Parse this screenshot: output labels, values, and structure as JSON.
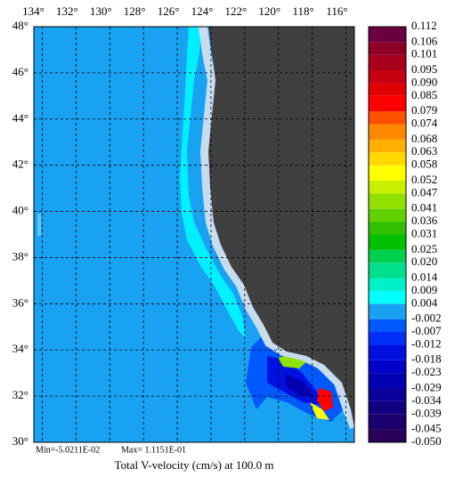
{
  "chart_data": {
    "type": "contour-map",
    "title": "Total V-velocity (cm/s) at 100.0 m",
    "min_label": "Min=-5.0211E-02",
    "max_label": "Max= 1.1151E-01",
    "xlim": [
      134.5,
      115.5
    ],
    "xticks": [
      {
        "value": 134,
        "label": "134°"
      },
      {
        "value": 132,
        "label": "132°"
      },
      {
        "value": 130,
        "label": "130°"
      },
      {
        "value": 128,
        "label": "128°"
      },
      {
        "value": 126,
        "label": "126°"
      },
      {
        "value": 124,
        "label": "124°"
      },
      {
        "value": 122,
        "label": "122°"
      },
      {
        "value": 120,
        "label": "120°"
      },
      {
        "value": 118,
        "label": "118°"
      },
      {
        "value": 116,
        "label": "116°"
      }
    ],
    "ylim": [
      30,
      48
    ],
    "yticks": [
      {
        "value": 30,
        "label": "30°"
      },
      {
        "value": 32,
        "label": "32°"
      },
      {
        "value": 34,
        "label": "34°"
      },
      {
        "value": 36,
        "label": "36°"
      },
      {
        "value": 38,
        "label": "38°"
      },
      {
        "value": 40,
        "label": "40°"
      },
      {
        "value": 42,
        "label": "42°"
      },
      {
        "value": 44,
        "label": "44°"
      },
      {
        "value": 46,
        "label": "46°"
      },
      {
        "value": 48,
        "label": "48°"
      }
    ],
    "grid": true,
    "colorbar": {
      "levels": [
        {
          "value": -0.05,
          "label": "-0.050"
        },
        -0.045,
        -0.039,
        -0.034,
        -0.029,
        -0.023,
        -0.018,
        -0.012,
        -0.007,
        -0.002,
        0.004,
        0.009,
        0.014,
        {
          "value": 0.02,
          "label": "0.020"
        },
        0.025,
        0.031,
        0.036,
        0.041,
        0.047,
        0.052,
        0.058,
        0.063,
        0.068,
        0.074,
        0.079,
        0.085,
        {
          "value": 0.09,
          "label": "0.090"
        },
        0.095,
        0.101,
        0.106,
        0.112
      ],
      "colors": [
        "#280058",
        "#1c006c",
        "#100080",
        "#080098",
        "#0000b0",
        "#0000c8",
        "#0010e0",
        "#0030f8",
        "#0058ff",
        "#1aa2f2",
        "#00ffff",
        "#00f0c8",
        "#00e08c",
        "#00d050",
        "#00c000",
        "#30c000",
        "#60d000",
        "#90e000",
        "#c8f000",
        "#ffff00",
        "#ffd800",
        "#ffb000",
        "#ff8800",
        "#ff5000",
        "#ff0000",
        "#e00000",
        "#c40010",
        "#a8001c",
        "#8c0028",
        "#6a0040"
      ]
    }
  }
}
